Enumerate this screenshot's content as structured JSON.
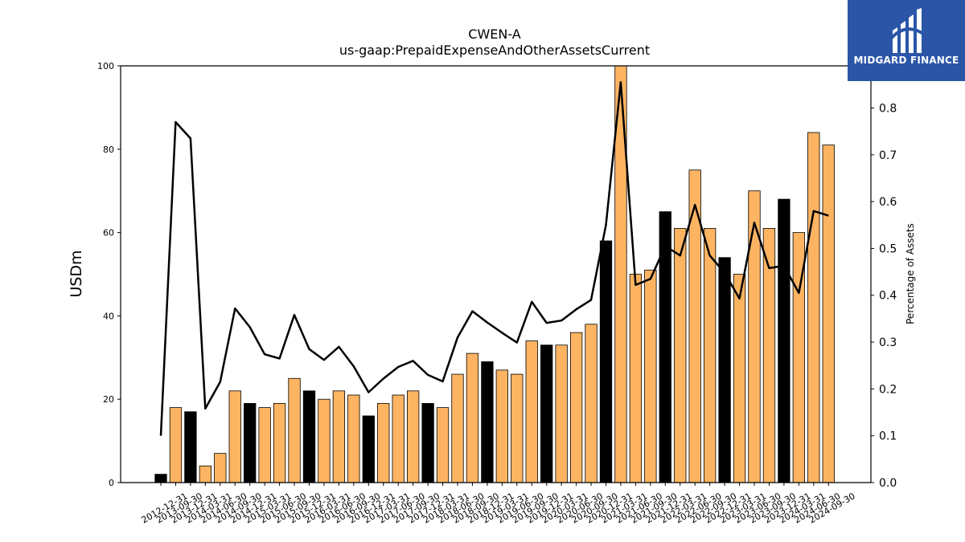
{
  "chart_data": {
    "type": "bar",
    "title": "CWEN-A",
    "subtitle": "us-gaap:PrepaidExpenseAndOtherAssetsCurrent",
    "ylabel": "USDm",
    "ylabel_right": "Percentage of Assets",
    "ylim": [
      0,
      100
    ],
    "ylim_right": [
      0,
      0.89
    ],
    "yticks": [
      0,
      20,
      40,
      60,
      80,
      100
    ],
    "yticks_right": [
      0.0,
      0.1,
      0.2,
      0.3,
      0.4,
      0.5,
      0.6,
      0.7,
      0.8
    ],
    "grid": false,
    "bar_colors": {
      "q4": "#000000",
      "other": "#fdb462"
    },
    "line_color": "#000000",
    "categories": [
      "2012-12-31",
      "2013-09-30",
      "2013-12-31",
      "2014-03-31",
      "2014-06-30",
      "2014-09-30",
      "2014-12-31",
      "2015-03-31",
      "2015-06-30",
      "2015-09-30",
      "2015-12-31",
      "2016-03-31",
      "2016-06-30",
      "2016-09-30",
      "2016-12-31",
      "2017-03-31",
      "2017-06-30",
      "2017-09-30",
      "2017-12-31",
      "2018-03-31",
      "2018-06-30",
      "2018-09-30",
      "2018-12-31",
      "2019-03-31",
      "2019-06-30",
      "2019-09-30",
      "2019-12-31",
      "2020-03-31",
      "2020-06-30",
      "2020-09-30",
      "2020-12-31",
      "2021-03-31",
      "2021-06-30",
      "2021-09-30",
      "2021-12-31",
      "2022-03-31",
      "2022-06-30",
      "2022-09-30",
      "2022-12-31",
      "2023-03-31",
      "2023-06-30",
      "2023-09-30",
      "2023-12-31",
      "2024-03-31",
      "2024-06-30",
      "2024-09-30"
    ],
    "series": [
      {
        "kind": "bar",
        "values": [
          2,
          18,
          17,
          4,
          7,
          22,
          19,
          18,
          19,
          25,
          22,
          20,
          22,
          21,
          16,
          19,
          21,
          22,
          19,
          18,
          26,
          31,
          29,
          27,
          26,
          34,
          33,
          33,
          36,
          38,
          58,
          101,
          50,
          51,
          65,
          61,
          75,
          61,
          54,
          50,
          70,
          61,
          68,
          60,
          84,
          81
        ]
      },
      {
        "kind": "line",
        "axis": "right",
        "values": [
          0.1,
          0.77,
          0.735,
          0.158,
          0.215,
          0.372,
          0.332,
          0.274,
          0.265,
          0.358,
          0.285,
          0.262,
          0.29,
          0.248,
          0.193,
          0.222,
          0.247,
          0.26,
          0.23,
          0.216,
          0.31,
          0.366,
          0.342,
          0.32,
          0.299,
          0.386,
          0.341,
          0.346,
          0.37,
          0.39,
          0.55,
          0.855,
          0.422,
          0.435,
          0.505,
          0.485,
          0.593,
          0.485,
          0.448,
          0.393,
          0.555,
          0.458,
          0.463,
          0.405,
          0.58,
          0.57
        ]
      }
    ]
  },
  "branding": {
    "logo_text": "MIDGARD FINANCE",
    "logo_icon": "midgard-logo-icon",
    "logo_bg": "#2b56a8"
  }
}
